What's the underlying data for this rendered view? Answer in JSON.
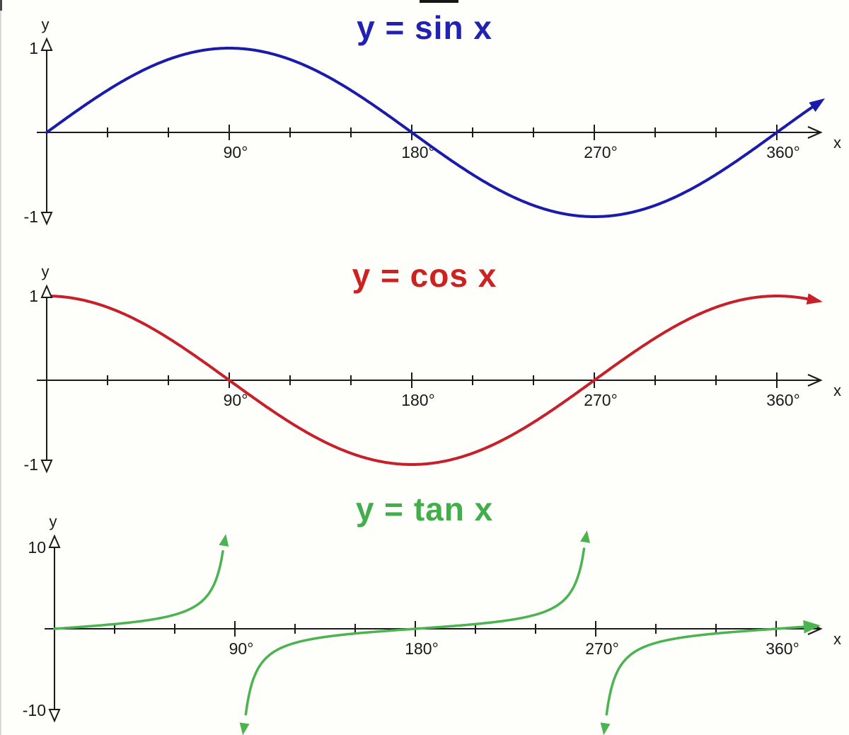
{
  "page": {
    "background": "#fefefb",
    "left_border_color": "#d8d8d5",
    "corner_mark_color": "#474747",
    "top_mark_color": "#161616",
    "axis_color": "#1a1a1a",
    "label_color": "#1a1a1a"
  },
  "chart_data": [
    {
      "type": "line",
      "function": "sin",
      "title": "y = sin x",
      "title_color": "#2222b2",
      "curve_color": "#1b1bab",
      "xlabel": "x",
      "ylabel": "y",
      "x_unit": "degrees",
      "x_tick_step_deg": 30,
      "labeled_ticks_deg": [
        90,
        180,
        270,
        360
      ],
      "x_tick_labels": [
        "90°",
        "180°",
        "270°",
        "360°"
      ],
      "x_range_deg": [
        0,
        378
      ],
      "ylim": [
        -1,
        1
      ],
      "y_tick_labels": {
        "max": "1",
        "min": "-1"
      },
      "key_points": [
        {
          "x_deg": 0,
          "y": 0
        },
        {
          "x_deg": 90,
          "y": 1
        },
        {
          "x_deg": 180,
          "y": 0
        },
        {
          "x_deg": 270,
          "y": -1
        },
        {
          "x_deg": 360,
          "y": 0
        }
      ],
      "samples_deg": [
        0,
        30,
        60,
        90,
        120,
        150,
        180,
        210,
        240,
        270,
        300,
        330,
        360
      ],
      "samples_y": [
        0,
        0.5,
        0.87,
        1,
        0.87,
        0.5,
        0,
        -0.5,
        -0.87,
        -1,
        -0.87,
        -0.5,
        0
      ],
      "end_arrow": "up-right"
    },
    {
      "type": "line",
      "function": "cos",
      "title": "y = cos x",
      "title_color": "#cc2222",
      "curve_color": "#c6202a",
      "xlabel": "x",
      "ylabel": "y",
      "x_unit": "degrees",
      "x_tick_step_deg": 30,
      "labeled_ticks_deg": [
        90,
        180,
        270,
        360
      ],
      "x_tick_labels": [
        "90°",
        "180°",
        "270°",
        "360°"
      ],
      "x_range_deg": [
        0,
        376
      ],
      "ylim": [
        -1,
        1
      ],
      "y_tick_labels": {
        "max": "1",
        "min": "-1"
      },
      "key_points": [
        {
          "x_deg": 0,
          "y": 1
        },
        {
          "x_deg": 90,
          "y": 0
        },
        {
          "x_deg": 180,
          "y": -1
        },
        {
          "x_deg": 270,
          "y": 0
        },
        {
          "x_deg": 360,
          "y": 1
        }
      ],
      "samples_deg": [
        0,
        30,
        60,
        90,
        120,
        150,
        180,
        210,
        240,
        270,
        300,
        330,
        360
      ],
      "samples_y": [
        1,
        0.87,
        0.5,
        0,
        -0.5,
        -0.87,
        -1,
        -0.87,
        -0.5,
        0,
        0.5,
        0.87,
        1
      ],
      "end_arrow": "right"
    },
    {
      "type": "line",
      "function": "tan",
      "title": "y = tan x",
      "title_color": "#42ad4b",
      "curve_color": "#4cb351",
      "xlabel": "x",
      "ylabel": "y",
      "x_unit": "degrees",
      "x_tick_step_deg": 30,
      "labeled_ticks_deg": [
        90,
        180,
        270,
        360
      ],
      "x_tick_labels": [
        "90°",
        "180°",
        "270°",
        "360°"
      ],
      "x_range_deg": [
        0,
        375
      ],
      "ylim": [
        -10,
        10
      ],
      "y_tick_labels": {
        "max": "10",
        "min": "-10"
      },
      "asymptotes_deg": [
        90,
        270
      ],
      "key_points": [
        {
          "x_deg": 0,
          "y": 0
        },
        {
          "x_deg": 45,
          "y": 1
        },
        {
          "x_deg": 135,
          "y": -1
        },
        {
          "x_deg": 180,
          "y": 0
        },
        {
          "x_deg": 225,
          "y": 1
        },
        {
          "x_deg": 315,
          "y": -1
        },
        {
          "x_deg": 360,
          "y": 0
        }
      ],
      "samples_deg": [
        0,
        30,
        60,
        90,
        120,
        150,
        180,
        210,
        240,
        270,
        300,
        330,
        360
      ],
      "samples_y": [
        0,
        0.58,
        1.73,
        null,
        -1.73,
        -0.58,
        0,
        0.58,
        1.73,
        null,
        -1.73,
        -0.58,
        0
      ],
      "branch_arrows": "up at asymptote left sides, down at asymptote right sides, right at end",
      "end_arrow": "right"
    }
  ]
}
